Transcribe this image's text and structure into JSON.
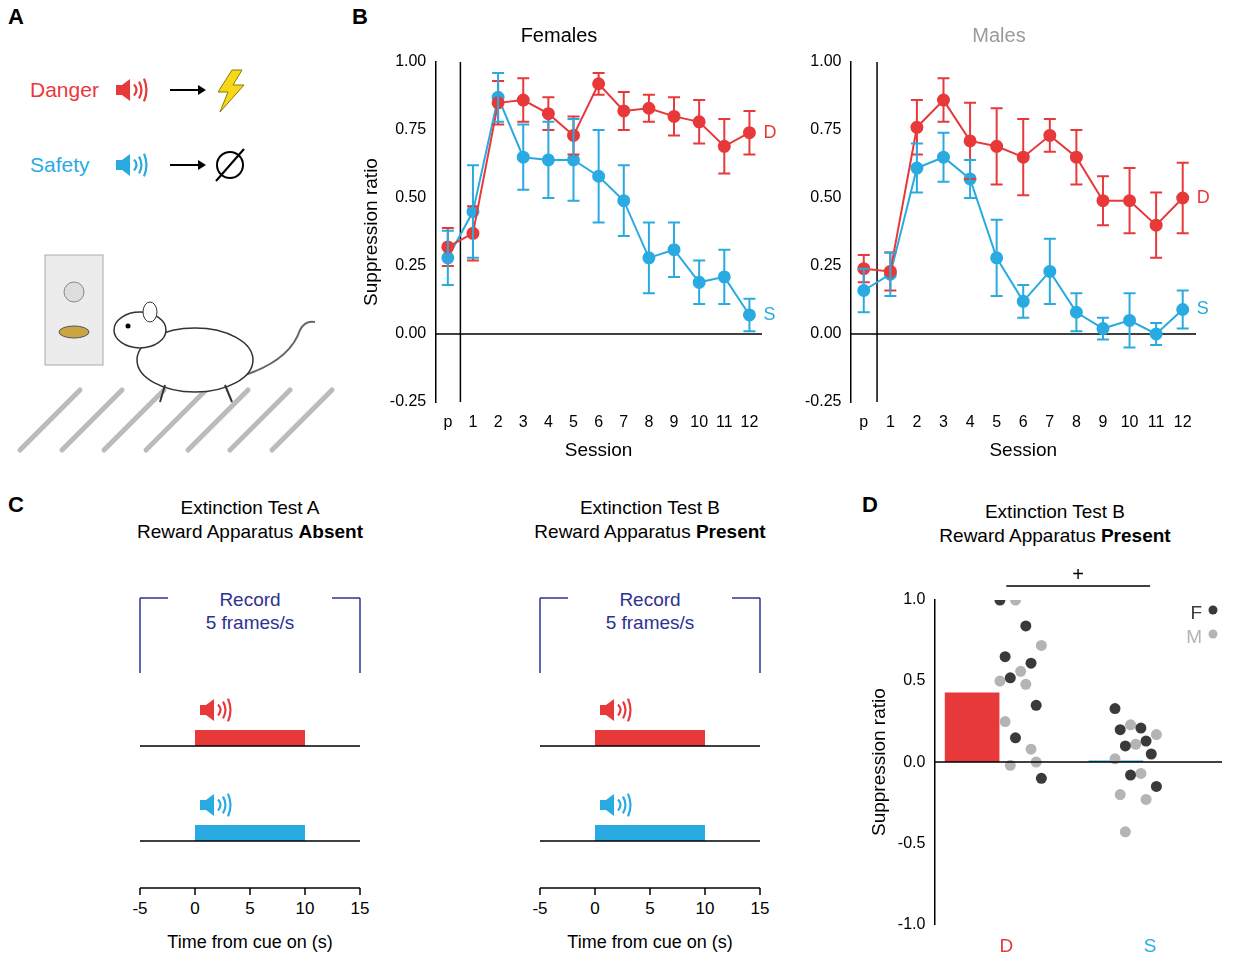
{
  "panel_letters": [
    "A",
    "B",
    "C",
    "D"
  ],
  "panel_A": {
    "cues": [
      {
        "label": "Danger",
        "color": "#e8393a"
      },
      {
        "label": "Safety",
        "color": "#29abe2"
      }
    ]
  },
  "chart_data": [
    {
      "type": "line",
      "title": "Females",
      "x_label": "Session",
      "y_label": "Suppression ratio",
      "categories": [
        "p",
        "1",
        "2",
        "3",
        "4",
        "5",
        "6",
        "7",
        "8",
        "9",
        "10",
        "11",
        "12"
      ],
      "series": [
        {
          "name": "D",
          "color": "#e8393a",
          "marker": "circle",
          "values": [
            0.32,
            0.37,
            0.85,
            0.86,
            0.81,
            0.73,
            0.92,
            0.82,
            0.83,
            0.8,
            0.78,
            0.69,
            0.74
          ],
          "errors": [
            0.07,
            0.1,
            0.08,
            0.08,
            0.06,
            0.07,
            0.04,
            0.07,
            0.05,
            0.07,
            0.08,
            0.1,
            0.08
          ]
        },
        {
          "name": "S",
          "color": "#29abe2",
          "marker": "circle",
          "values": [
            0.28,
            0.45,
            0.87,
            0.65,
            0.64,
            0.64,
            0.58,
            0.49,
            0.28,
            0.31,
            0.19,
            0.21,
            0.07
          ],
          "errors": [
            0.1,
            0.17,
            0.09,
            0.12,
            0.14,
            0.15,
            0.17,
            0.13,
            0.13,
            0.1,
            0.08,
            0.1,
            0.06
          ]
        }
      ],
      "ylim": [
        -0.25,
        1.0
      ],
      "yticks": [
        -0.25,
        {
          "value": 0,
          "label": "0.00"
        },
        0.25,
        {
          "value": 0.5,
          "label": "0.50"
        },
        0.75,
        {
          "value": 1.0,
          "label": "1.00"
        }
      ],
      "grid": false
    },
    {
      "type": "line",
      "title": "Males",
      "x_label": "Session",
      "categories": [
        "p",
        "1",
        "2",
        "3",
        "4",
        "5",
        "6",
        "7",
        "8",
        "9",
        "10",
        "11",
        "12"
      ],
      "series": [
        {
          "name": "D",
          "color": "#e8393a",
          "marker": "circle",
          "values": [
            0.24,
            0.23,
            0.76,
            0.86,
            0.71,
            0.69,
            0.65,
            0.73,
            0.65,
            0.49,
            0.49,
            0.4,
            0.5
          ],
          "errors": [
            0.05,
            0.07,
            0.1,
            0.08,
            0.14,
            0.14,
            0.14,
            0.06,
            0.1,
            0.09,
            0.12,
            0.12,
            0.13
          ]
        },
        {
          "name": "S",
          "color": "#29abe2",
          "marker": "circle",
          "values": [
            0.16,
            0.22,
            0.61,
            0.65,
            0.57,
            0.28,
            0.12,
            0.23,
            0.08,
            0.02,
            0.05,
            0.0,
            0.09
          ],
          "errors": [
            0.08,
            0.08,
            0.09,
            0.09,
            0.07,
            0.14,
            0.06,
            0.12,
            0.07,
            0.04,
            0.1,
            0.04,
            0.07
          ]
        }
      ],
      "ylim": [
        -0.25,
        1.0
      ],
      "yticks": [
        -0.25,
        {
          "value": 0,
          "label": "0.00"
        },
        0.25,
        {
          "value": 0.5,
          "label": "0.50"
        },
        0.75,
        {
          "value": 1.0,
          "label": "1.00"
        }
      ],
      "grid": false
    },
    {
      "type": "bar",
      "title": "Extinction Test B",
      "subtitle": "Reward Apparatus Present",
      "y_label": "Suppression ratio",
      "categories": [
        "D",
        "S"
      ],
      "values": [
        0.43,
        0.01
      ],
      "colors": [
        "#e8393a",
        "#29abe2"
      ],
      "points": [
        {
          "name": "F",
          "color": "#3a3a3a",
          "values": [
            [
              1.0,
              0.84,
              0.65,
              0.61,
              0.52,
              0.35,
              0.15,
              -0.1
            ],
            [
              0.33,
              0.21,
              0.2,
              0.13,
              0.1,
              0.05,
              -0.08,
              -0.15
            ]
          ]
        },
        {
          "name": "M",
          "color": "#b4b4b4",
          "values": [
            [
              1.0,
              0.72,
              0.56,
              0.5,
              0.48,
              0.25,
              0.08,
              -0.02,
              0.0
            ],
            [
              0.23,
              0.17,
              0.11,
              0.02,
              -0.07,
              -0.2,
              -0.23,
              -0.43
            ]
          ]
        }
      ],
      "ylim": [
        -1.0,
        1.0
      ],
      "yticks": [
        {
          "value": -1.0,
          "label": "-1.0"
        },
        {
          "value": -0.5,
          "label": "-0.5"
        },
        {
          "value": 0,
          "label": "0.0"
        },
        {
          "value": 0.5,
          "label": "0.5"
        },
        {
          "value": 1.0,
          "label": "1.0"
        }
      ],
      "annotations": [
        {
          "text": "+",
          "from": "D",
          "to": "S"
        }
      ],
      "legend": "top-right",
      "grid": false
    }
  ],
  "panel_C": {
    "diagrams": [
      {
        "title": "Extinction Test A",
        "subtitle": "Reward Apparatus Absent",
        "record_label": [
          "Record",
          "5 frames/s"
        ],
        "record": [
          -5,
          15
        ],
        "cues": [
          {
            "color": "#e8393a",
            "span": [
              0,
              10
            ]
          },
          {
            "color": "#29abe2",
            "span": [
              0,
              10
            ]
          }
        ],
        "xlim": [
          -5,
          15
        ],
        "xticks": [
          -5,
          0,
          5,
          10,
          15
        ],
        "x_label": "Time from cue on (s)"
      },
      {
        "title": "Extinction Test B",
        "subtitle": "Reward Apparatus Present",
        "record_label": [
          "Record",
          "5 frames/s"
        ],
        "record": [
          -5,
          15
        ],
        "cues": [
          {
            "color": "#e8393a",
            "span": [
              0,
              10
            ]
          },
          {
            "color": "#29abe2",
            "span": [
              0,
              10
            ]
          }
        ],
        "xlim": [
          -5,
          15
        ],
        "xticks": [
          -5,
          0,
          5,
          10,
          15
        ],
        "x_label": "Time from cue on (s)"
      }
    ]
  }
}
